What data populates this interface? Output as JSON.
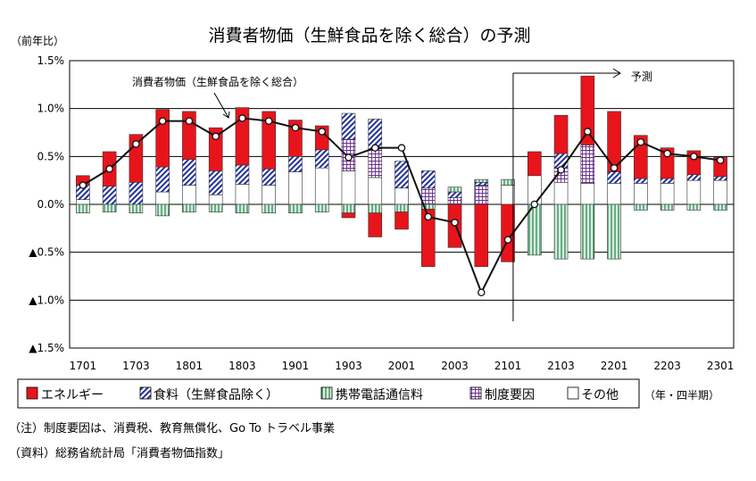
{
  "chart_data": {
    "type": "bar",
    "title": "消費者物価（生鮮食品を除く総合）の予測",
    "ylabel": "（前年比）",
    "ylim": [
      -1.5,
      1.5
    ],
    "yticks": [
      1.5,
      1.0,
      0.5,
      0.0,
      -0.5,
      -1.0,
      -1.5
    ],
    "ytick_labels": [
      "1.5%",
      "1.0%",
      "0.5%",
      "0.0%",
      "▲0.5%",
      "▲1.0%",
      "▲1.5%"
    ],
    "x_tick_labels": [
      "1701",
      "1703",
      "1801",
      "1803",
      "1901",
      "1903",
      "2001",
      "2003",
      "2101",
      "2103",
      "2201",
      "2203",
      "2301"
    ],
    "x_unit": "（年・四半期）",
    "grid": true,
    "categories": [
      "1701",
      "1702",
      "1703",
      "1704",
      "1801",
      "1802",
      "1803",
      "1804",
      "1901",
      "1902",
      "1903",
      "1904",
      "2001",
      "2002",
      "2003",
      "2004",
      "2101",
      "2102",
      "2103",
      "2104",
      "2201",
      "2202",
      "2203",
      "2204",
      "2301"
    ],
    "series": [
      {
        "name": "エネルギー",
        "color": "#e8141b",
        "pattern": "solid",
        "values": [
          0.1,
          0.36,
          0.5,
          0.6,
          0.5,
          0.45,
          0.6,
          0.6,
          0.38,
          0.25,
          -0.05,
          -0.25,
          -0.18,
          -0.6,
          -0.45,
          -0.65,
          -0.6,
          0.25,
          0.4,
          0.72,
          0.63,
          0.45,
          0.32,
          0.25,
          0.2
        ]
      },
      {
        "name": "食料（生鮮食品除く）",
        "color": "#1f2f9a",
        "pattern": "diagonal",
        "values": [
          0.15,
          0.19,
          0.23,
          0.26,
          0.27,
          0.25,
          0.2,
          0.17,
          0.16,
          0.19,
          0.27,
          0.31,
          0.28,
          0.18,
          0.06,
          0.03,
          0.0,
          0.0,
          0.15,
          0.0,
          0.12,
          0.05,
          0.05,
          0.06,
          0.04
        ]
      },
      {
        "name": "携帯電話通信料",
        "color": "#2e8b57",
        "pattern": "vertical",
        "values": [
          -0.09,
          -0.08,
          -0.09,
          -0.12,
          -0.08,
          -0.08,
          -0.09,
          -0.09,
          -0.09,
          -0.08,
          -0.09,
          -0.09,
          -0.08,
          -0.05,
          0.05,
          0.03,
          0.06,
          -0.53,
          -0.57,
          -0.57,
          -0.57,
          -0.06,
          -0.06,
          -0.06,
          -0.06
        ]
      },
      {
        "name": "制度要因",
        "color": "#6a2c91",
        "pattern": "grid",
        "values": [
          0.0,
          0.0,
          0.0,
          0.0,
          0.0,
          0.0,
          0.0,
          0.0,
          0.0,
          0.0,
          0.33,
          0.3,
          0.0,
          0.17,
          0.07,
          0.2,
          0.0,
          0.0,
          0.15,
          0.4,
          0.0,
          0.0,
          0.0,
          0.0,
          0.0
        ]
      },
      {
        "name": "その他",
        "color": "#ffffff",
        "pattern": "empty",
        "values": [
          0.05,
          0.0,
          0.0,
          0.13,
          0.2,
          0.1,
          0.21,
          0.2,
          0.34,
          0.38,
          0.35,
          0.28,
          0.17,
          0.0,
          0.0,
          0.0,
          0.2,
          0.3,
          0.23,
          0.22,
          0.22,
          0.22,
          0.22,
          0.25,
          0.25
        ]
      }
    ],
    "line": {
      "name": "消費者物価（生鮮食品を除く総合）",
      "values": [
        0.2,
        0.37,
        0.63,
        0.87,
        0.87,
        0.71,
        0.9,
        0.87,
        0.8,
        0.76,
        0.49,
        0.59,
        0.59,
        -0.13,
        -0.19,
        -0.92,
        -0.37,
        0.0,
        0.36,
        0.76,
        0.38,
        0.65,
        0.53,
        0.5,
        0.46
      ]
    },
    "annotations": {
      "line_label": "消費者物価（生鮮食品を除く総合）",
      "forecast_label": "予測"
    }
  },
  "notes": {
    "note1": "（注）制度要因は、消費税、教育無償化、Go To トラベル事業",
    "note2": "（資料）総務省統計局「消費者物価指数」"
  }
}
